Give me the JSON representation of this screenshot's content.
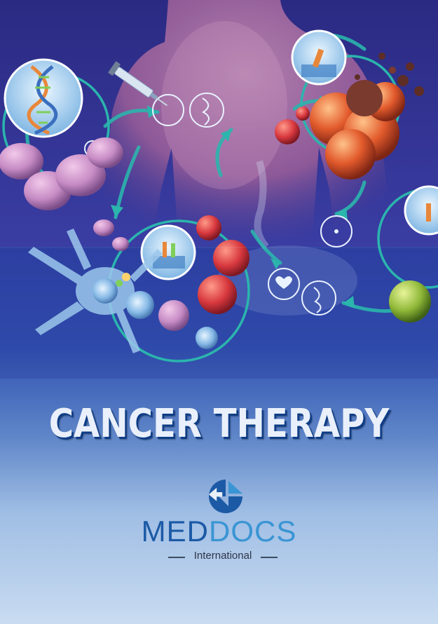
{
  "cover": {
    "title": "CANCER THERAPY",
    "brand_part1": "MED",
    "brand_part2": "DOCS",
    "brand_subtitle": "International"
  },
  "colors": {
    "background_top": "#2a2d8e",
    "background_bottom": "#c9dcf1",
    "accent_teal": "#2bb5ad",
    "brand_dark_blue": "#1c5aa6",
    "brand_light_blue": "#3a95d4",
    "title_fill": "#e9f0fb",
    "title_shadow": "#0e3d86"
  },
  "icons": [
    "dna-icon",
    "syringe-icon",
    "heart-icon",
    "cell-icon",
    "arrow-icon",
    "logo-icon"
  ]
}
